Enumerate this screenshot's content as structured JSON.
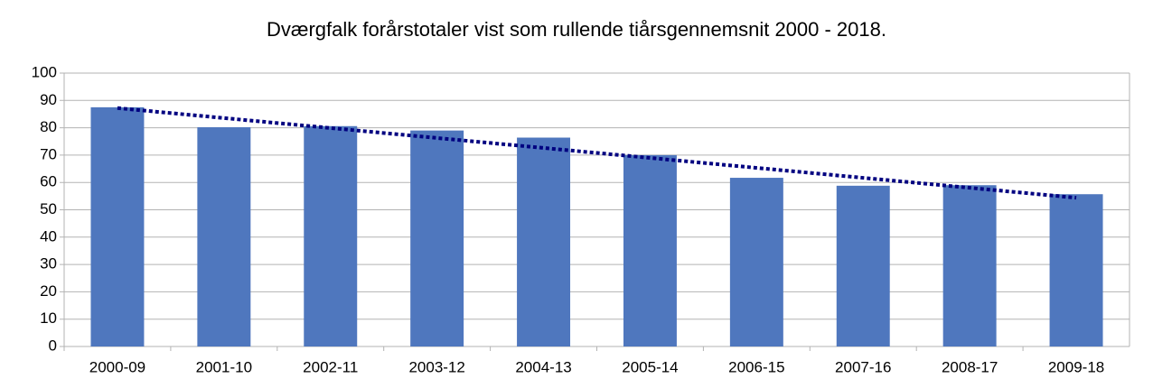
{
  "chart_data": {
    "type": "bar",
    "title": "Dværgfalk forårstotaler vist som rullende tiårsgennemsnit  2000 - 2018.",
    "categories": [
      "2000-09",
      "2001-10",
      "2002-11",
      "2003-12",
      "2004-13",
      "2005-14",
      "2006-15",
      "2007-16",
      "2008-17",
      "2009-18"
    ],
    "values": [
      87.5,
      80.2,
      80.6,
      79,
      76.4,
      70,
      61.7,
      58.8,
      59,
      55.7
    ],
    "color": "#4f77be",
    "trendline": {
      "values": [
        87.2,
        54.4
      ],
      "color": "#000080"
    },
    "ylim": [
      0,
      100
    ],
    "yticks": [
      0,
      10,
      20,
      30,
      40,
      50,
      60,
      70,
      80,
      90,
      100
    ],
    "grid": true
  }
}
